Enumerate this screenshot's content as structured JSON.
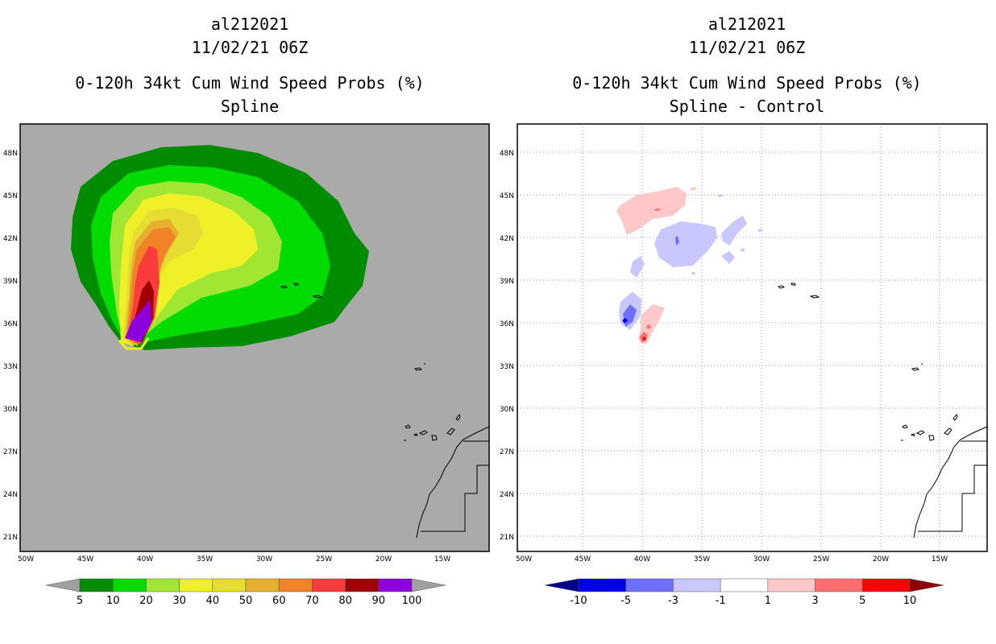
{
  "left": {
    "title": {
      "line1": "al212021",
      "line2": "11/02/21 06Z",
      "line3": "0-120h 34kt Cum Wind Speed Probs (%)",
      "line4": "Spline"
    },
    "lon_ticks": [
      "50W",
      "45W",
      "40W",
      "35W",
      "30W",
      "25W",
      "20W",
      "15W"
    ],
    "lat_ticks": [
      "48N",
      "45N",
      "42N",
      "39N",
      "36N",
      "33N",
      "30N",
      "27N",
      "24N",
      "21N"
    ],
    "colorbar": {
      "labels": [
        "5",
        "10",
        "20",
        "30",
        "40",
        "50",
        "60",
        "70",
        "80",
        "90",
        "100"
      ],
      "colors": [
        "#008c00",
        "#00dc00",
        "#a0e632",
        "#f0f028",
        "#e6dc32",
        "#e6af2d",
        "#f08228",
        "#fa3c3c",
        "#a00000",
        "#8c00dc"
      ],
      "under_color": "#a0a0a0",
      "over_color": "#a0a0a0"
    }
  },
  "right": {
    "title": {
      "line1": "al212021",
      "line2": "11/02/21 06Z",
      "line3": "0-120h 34kt Cum Wind Speed Probs (%)",
      "line4": "Spline - Control"
    },
    "lon_ticks": [
      "50W",
      "45W",
      "40W",
      "35W",
      "30W",
      "25W",
      "20W",
      "15W"
    ],
    "lat_ticks": [
      "48N",
      "45N",
      "42N",
      "39N",
      "36N",
      "33N",
      "30N",
      "27N",
      "24N",
      "21N"
    ],
    "colorbar": {
      "labels": [
        "-10",
        "-5",
        "-3",
        "-1",
        "1",
        "3",
        "5",
        "10"
      ],
      "colors": [
        "#0000e6",
        "#6e6eff",
        "#c8c8ff",
        "#ffffff",
        "#ffc8c8",
        "#ff6e6e",
        "#ff0000"
      ],
      "under_color": "#00008c",
      "over_color": "#8c0000"
    }
  }
}
